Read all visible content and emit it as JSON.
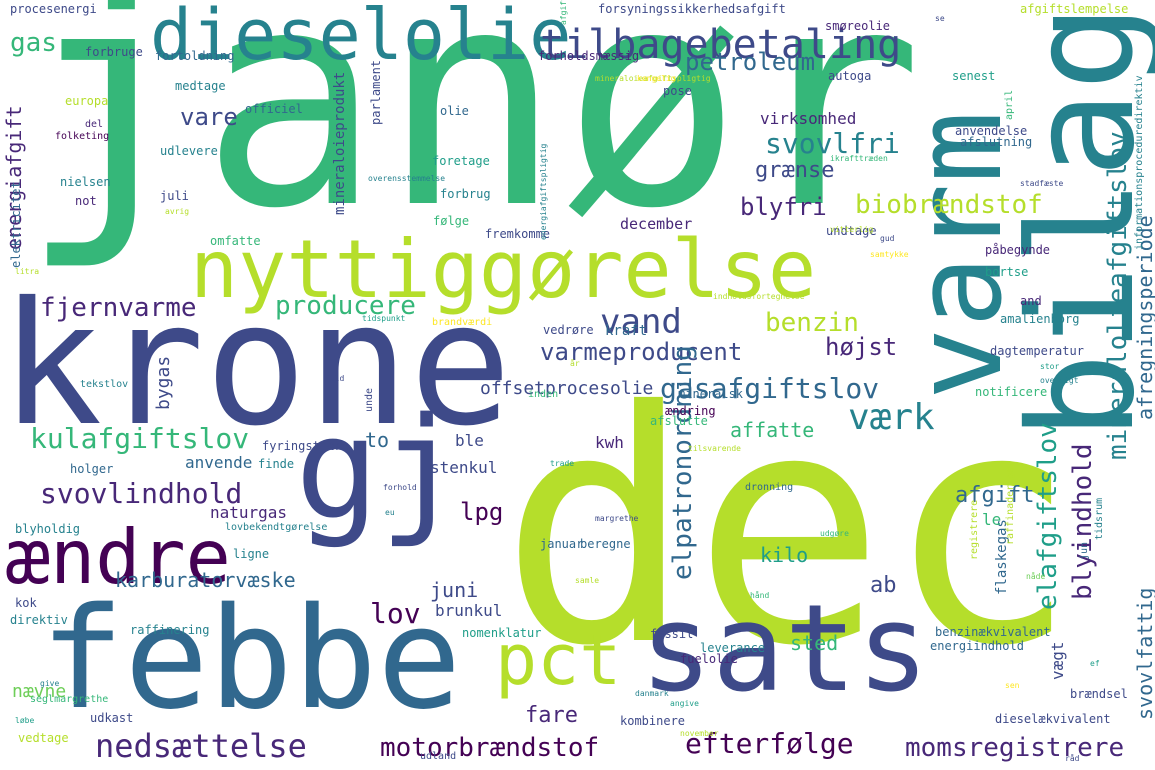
{
  "colors": {
    "background": "#ffffff",
    "palette": [
      "#440154",
      "#482878",
      "#3e4a89",
      "#31688e",
      "#26828e",
      "#1f9e89",
      "#35b779",
      "#6ece58",
      "#b5de2b",
      "#fde725"
    ]
  },
  "words": [
    "janør",
    "dec",
    "krone",
    "bilag",
    "febbe",
    "sats",
    "varm",
    "gj",
    "nyttiggørelse",
    "dieselolie",
    "ændre",
    "pct",
    "tilbagebetaling",
    "mineralolieafgiftslov",
    "svovlindhold",
    "vand",
    "kulafgiftslov",
    "gasafgiftslov",
    "værk",
    "nedsættelse",
    "motorbrændstof",
    "efterfølge",
    "momsregistrere",
    "fjernvarme",
    "producere",
    "varmeproducent",
    "petroleum",
    "svovlfri",
    "biobrændstof",
    "blyfri",
    "benzin",
    "højst",
    "elafgiftslov",
    "blyindhold",
    "elpatronordning",
    "karburatorvæske",
    "affatte",
    "afgift",
    "energiafgift",
    "offsetprocesolie",
    "lpg",
    "afregningsperiode",
    "grænse",
    "vare",
    "lov",
    "kilo",
    "juni",
    "fare",
    "ab",
    "sted",
    "gas",
    "to",
    "svovlfattig",
    "vægt",
    "bygas",
    "naturgas",
    "brunkul",
    "ble",
    "kwh",
    "stenkul",
    "virksomhed",
    "mineraloieprodukt",
    "december",
    "kraft",
    "nævne",
    "januar",
    "beregne",
    "fuelolie",
    "flaskegas",
    "le",
    "anvende",
    "holger",
    "blyholdig",
    "kok",
    "direktiv",
    "raffinering",
    "nomenklatur",
    "leverance",
    "fossil",
    "udkast",
    "kombinere",
    "energiindhold",
    "dieselækvivalent",
    "brændsel",
    "benzinækvivalent",
    "and",
    "amalienborg",
    "påbegynde",
    "bortse",
    "dagtemperatur",
    "notificere",
    "mineralsk",
    "ændring",
    "afslutte",
    "forsyningssikkerhedsafgift",
    "procesenergi",
    "forbruge",
    "fortoldning",
    "medtage",
    "officiel",
    "udlevere",
    "juli",
    "omfatte",
    "nielsen",
    "not",
    "europa",
    "folketing",
    "del",
    "elektricitet",
    "forholdsmæssig",
    "parlament",
    "olie",
    "foretage",
    "forbrug",
    "følge",
    "fremkomme",
    "pose",
    "autoga",
    "smøreolie",
    "afgiftslempelse",
    "senest",
    "anvendelse",
    "afslutning",
    "undtage",
    "informationsprocedure­direktiv",
    "april",
    "stadfæste",
    "gud",
    "fyringstjære",
    "finde",
    "lovbekendtgørelse",
    "ligne",
    "udland",
    "unde",
    "tekstlov",
    "tidspunkt",
    "brandværdi",
    "indholdsfortegnelse",
    "dronning",
    "raffinaderiga",
    "margrethe",
    "tidsrum",
    "jun",
    "registrere",
    "udgøre",
    "nåde",
    "stor",
    "oversigt",
    "energiafgiftspligtig",
    "afgiftspligtig",
    "mineraloieafgiftspligtig",
    "kongelig",
    "ikrafttræden",
    "vitterlig",
    "samtykke",
    "avrig",
    "forhold",
    "eu",
    "samle",
    "hånd",
    "danmark",
    "angive",
    "november",
    "trade",
    "tilsvarende",
    "give",
    "seglmargrethe",
    "løbe",
    "vedtage",
    "litra",
    "fuld",
    "år",
    "inden",
    "ef",
    "sen",
    "råd",
    "overensstemmelse",
    "se",
    "vedrøre",
    "februar"
  ]
}
